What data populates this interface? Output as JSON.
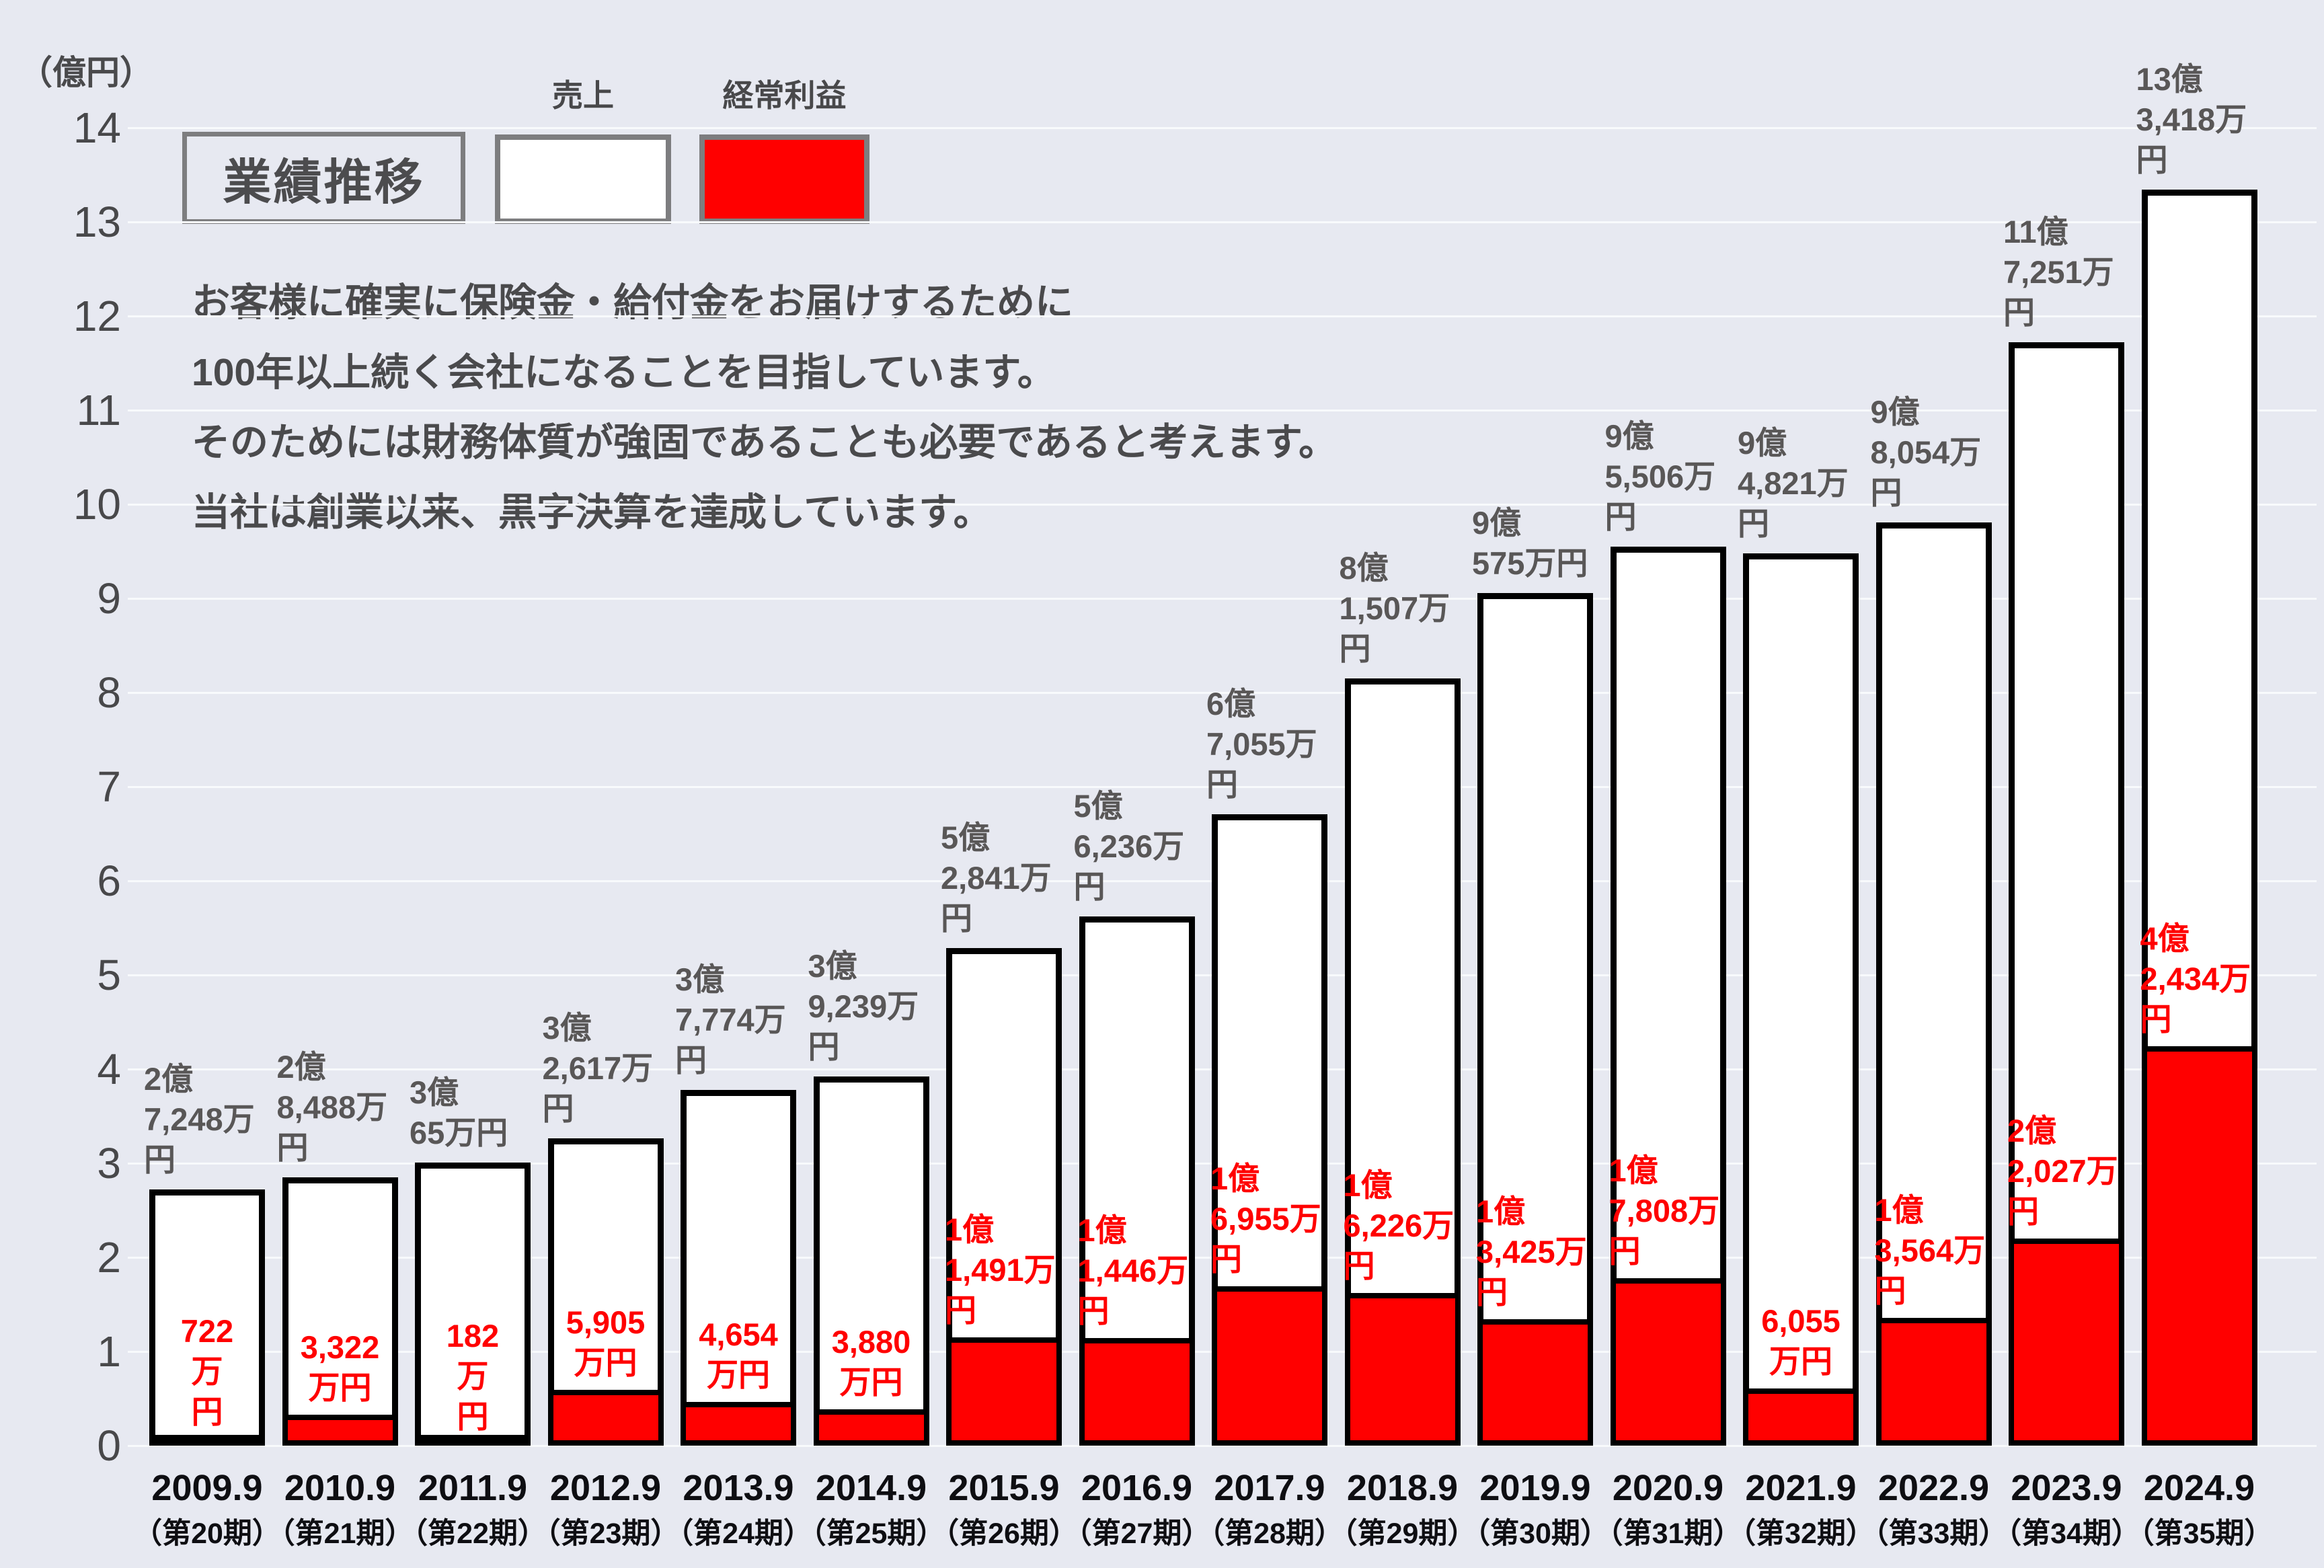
{
  "title": "業績推移",
  "y_axis": {
    "unit_label": "（億円）",
    "max": 14,
    "ticks": [
      14,
      13,
      12,
      11,
      10,
      9,
      8,
      7,
      6,
      5,
      4,
      3,
      2,
      1,
      0
    ]
  },
  "legend": {
    "sales_label": "売上",
    "profit_label": "経常利益"
  },
  "description": {
    "lines": [
      "お客様に確実に保険金・給付金をお届けするために",
      "100年以上続く会社になることを目指しています。",
      "そのためには財務体質が強固であることも必要であると考えます。",
      "当社は創業以来、黒字決算を達成しています。"
    ]
  },
  "colors": {
    "background": "#e7e9f1",
    "sales_fill": "#ffffff",
    "profit_fill": "#ff0000",
    "bar_border": "#000000",
    "gridline": "#f8fafc",
    "gray_text": "#595757",
    "profit_text": "#ff0000"
  },
  "chart_data": {
    "type": "bar",
    "title": "業績推移",
    "ylabel": "億円",
    "xlabel": "",
    "ylim": [
      0,
      14
    ],
    "grid": true,
    "legend_position": "top-left",
    "unit": "億円",
    "categories": [
      "2009.9（第20期）",
      "2010.9（第21期）",
      "2011.9（第22期）",
      "2012.9（第23期）",
      "2013.9（第24期）",
      "2014.9（第25期）",
      "2015.9（第26期）",
      "2016.9（第27期）",
      "2017.9（第28期）",
      "2018.9（第29期）",
      "2019.9（第30期）",
      "2020.9（第31期）",
      "2021.9（第32期）",
      "2022.9（第33期）",
      "2023.9（第34期）",
      "2024.9（第35期）"
    ],
    "series": [
      {
        "name": "売上",
        "values": [
          2.7248,
          2.8488,
          3.0065,
          3.2617,
          3.7774,
          3.9239,
          5.2841,
          5.6236,
          6.7055,
          8.1507,
          9.0575,
          9.5506,
          9.4821,
          9.8054,
          11.7251,
          13.3418
        ]
      },
      {
        "name": "経常利益",
        "values": [
          0.0722,
          0.3322,
          0.0182,
          0.5905,
          0.4654,
          0.388,
          1.1491,
          1.1446,
          1.6955,
          1.6226,
          1.3425,
          1.7808,
          0.6055,
          1.3564,
          2.2027,
          4.2434
        ]
      }
    ],
    "bars": [
      {
        "year": "2009.9",
        "term": "（第20期）",
        "sales": 2.7248,
        "sales_label": [
          "2億",
          "7,248万円"
        ],
        "profit": 0.0722,
        "profit_label": [
          "722万円"
        ]
      },
      {
        "year": "2010.9",
        "term": "（第21期）",
        "sales": 2.8488,
        "sales_label": [
          "2億",
          "8,488万円"
        ],
        "profit": 0.3322,
        "profit_label": [
          "3,322万円"
        ]
      },
      {
        "year": "2011.9",
        "term": "（第22期）",
        "sales": 3.0065,
        "sales_label": [
          "3億",
          "65万円"
        ],
        "profit": 0.0182,
        "profit_label": [
          "182万円"
        ]
      },
      {
        "year": "2012.9",
        "term": "（第23期）",
        "sales": 3.2617,
        "sales_label": [
          "3億",
          "2,617万円"
        ],
        "profit": 0.5905,
        "profit_label": [
          "5,905万円"
        ]
      },
      {
        "year": "2013.9",
        "term": "（第24期）",
        "sales": 3.7774,
        "sales_label": [
          "3億",
          "7,774万円"
        ],
        "profit": 0.4654,
        "profit_label": [
          "4,654万円"
        ]
      },
      {
        "year": "2014.9",
        "term": "（第25期）",
        "sales": 3.9239,
        "sales_label": [
          "3億",
          "9,239万円"
        ],
        "profit": 0.388,
        "profit_label": [
          "3,880万円"
        ]
      },
      {
        "year": "2015.9",
        "term": "（第26期）",
        "sales": 5.2841,
        "sales_label": [
          "5億",
          "2,841万円"
        ],
        "profit": 1.1491,
        "profit_label": [
          "1億",
          "1,491万円"
        ]
      },
      {
        "year": "2016.9",
        "term": "（第27期）",
        "sales": 5.6236,
        "sales_label": [
          "5億",
          "6,236万円"
        ],
        "profit": 1.1446,
        "profit_label": [
          "1億",
          "1,446万円"
        ]
      },
      {
        "year": "2017.9",
        "term": "（第28期）",
        "sales": 6.7055,
        "sales_label": [
          "6億",
          "7,055万円"
        ],
        "profit": 1.6955,
        "profit_label": [
          "1億",
          "6,955万円"
        ]
      },
      {
        "year": "2018.9",
        "term": "（第29期）",
        "sales": 8.1507,
        "sales_label": [
          "8億",
          "1,507万円"
        ],
        "profit": 1.6226,
        "profit_label": [
          "1億",
          "6,226万円"
        ]
      },
      {
        "year": "2019.9",
        "term": "（第30期）",
        "sales": 9.0575,
        "sales_label": [
          "9億",
          "575万円"
        ],
        "profit": 1.3425,
        "profit_label": [
          "1億",
          "3,425万円"
        ]
      },
      {
        "year": "2020.9",
        "term": "（第31期）",
        "sales": 9.5506,
        "sales_label": [
          "9億",
          "5,506万円"
        ],
        "profit": 1.7808,
        "profit_label": [
          "1億",
          "7,808万円"
        ]
      },
      {
        "year": "2021.9",
        "term": "（第32期）",
        "sales": 9.4821,
        "sales_label": [
          "9億",
          "4,821万円"
        ],
        "profit": 0.6055,
        "profit_label": [
          "6,055万円"
        ]
      },
      {
        "year": "2022.9",
        "term": "（第33期）",
        "sales": 9.8054,
        "sales_label": [
          "9億",
          "8,054万円"
        ],
        "profit": 1.3564,
        "profit_label": [
          "1億",
          "3,564万円"
        ]
      },
      {
        "year": "2023.9",
        "term": "（第34期）",
        "sales": 11.7251,
        "sales_label": [
          "11億",
          "7,251万円"
        ],
        "profit": 2.2027,
        "profit_label": [
          "2億",
          "2,027万円"
        ]
      },
      {
        "year": "2024.9",
        "term": "（第35期）",
        "sales": 13.3418,
        "sales_label": [
          "13億",
          "3,418万円"
        ],
        "profit": 4.2434,
        "profit_label": [
          "4億",
          "2,434万円"
        ]
      }
    ]
  }
}
